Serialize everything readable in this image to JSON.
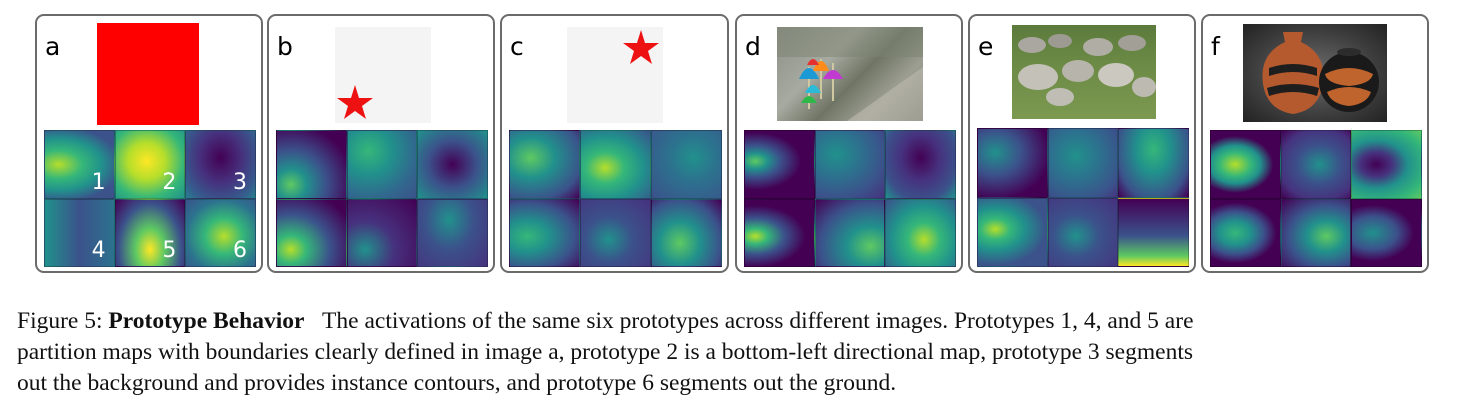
{
  "panels": [
    {
      "letter": "a",
      "prototype_numbers": [
        "1",
        "2",
        "3",
        "4",
        "5",
        "6"
      ]
    },
    {
      "letter": "b"
    },
    {
      "letter": "c"
    },
    {
      "letter": "d"
    },
    {
      "letter": "e"
    },
    {
      "letter": "f"
    }
  ],
  "colors": {
    "panel_border": "#6b6b6b",
    "red_square": "#ff0000",
    "star": "#ee1111",
    "synthetic_background": "#f4f4f4",
    "viridis_dark": "#440154",
    "viridis_mid": "#21918c",
    "viridis_bright": "#fde725"
  },
  "caption": {
    "label": "Figure 5:",
    "title": "Prototype Behavior",
    "line1": "The activations of the same six prototypes across different images. Prototypes 1, 4, and 5 are",
    "line2": "partition maps with boundaries clearly defined in image a, prototype 2 is a bottom-left directional map, prototype 3 segments",
    "line3": "out the background and provides instance contours, and prototype 6 segments out the ground."
  }
}
